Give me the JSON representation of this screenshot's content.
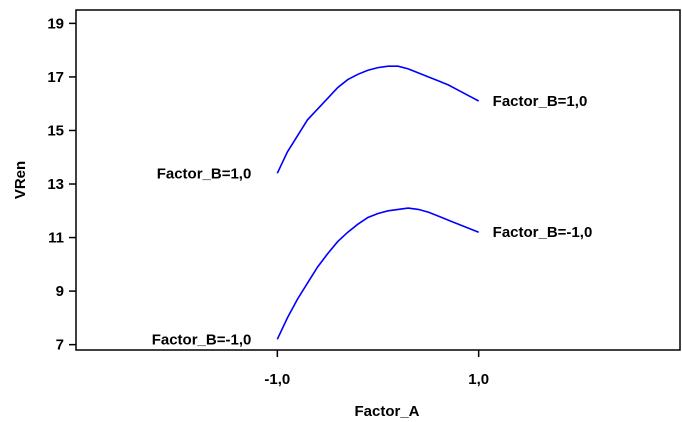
{
  "chart_data": {
    "type": "line",
    "title": "",
    "xlabel": "Factor_A",
    "ylabel": "VRen",
    "xlim": [
      -3.0,
      3.0
    ],
    "ylim": [
      6.8,
      19.5
    ],
    "x_ticks": [
      -1.0,
      1.0
    ],
    "x_tick_labels": [
      "-1,0",
      "1,0"
    ],
    "y_ticks": [
      7,
      9,
      11,
      13,
      15,
      17,
      19
    ],
    "y_tick_labels": [
      "7",
      "9",
      "11",
      "13",
      "15",
      "17",
      "19"
    ],
    "grid": false,
    "legend": "none",
    "series": [
      {
        "start_label": "Factor_B=1,0",
        "end_label": "Factor_B=1,0",
        "color": "#0000ff",
        "x": [
          -1.0,
          -0.9,
          -0.8,
          -0.7,
          -0.6,
          -0.5,
          -0.4,
          -0.3,
          -0.2,
          -0.1,
          0.0,
          0.1,
          0.2,
          0.3,
          0.4,
          0.5,
          0.6,
          0.7,
          0.8,
          0.9,
          1.0
        ],
        "values": [
          13.4,
          14.2,
          14.8,
          15.4,
          15.8,
          16.2,
          16.6,
          16.9,
          17.1,
          17.25,
          17.35,
          17.4,
          17.4,
          17.3,
          17.15,
          17.0,
          16.85,
          16.7,
          16.5,
          16.3,
          16.1
        ]
      },
      {
        "start_label": "Factor_B=-1,0",
        "end_label": "Factor_B=-1,0",
        "color": "#0000ff",
        "x": [
          -1.0,
          -0.9,
          -0.8,
          -0.7,
          -0.6,
          -0.5,
          -0.4,
          -0.3,
          -0.2,
          -0.1,
          0.0,
          0.1,
          0.2,
          0.3,
          0.4,
          0.5,
          0.6,
          0.7,
          0.8,
          0.9,
          1.0
        ],
        "values": [
          7.2,
          8.0,
          8.7,
          9.3,
          9.9,
          10.4,
          10.85,
          11.2,
          11.5,
          11.75,
          11.9,
          12.0,
          12.05,
          12.1,
          12.05,
          11.95,
          11.8,
          11.65,
          11.5,
          11.35,
          11.2
        ]
      }
    ]
  }
}
